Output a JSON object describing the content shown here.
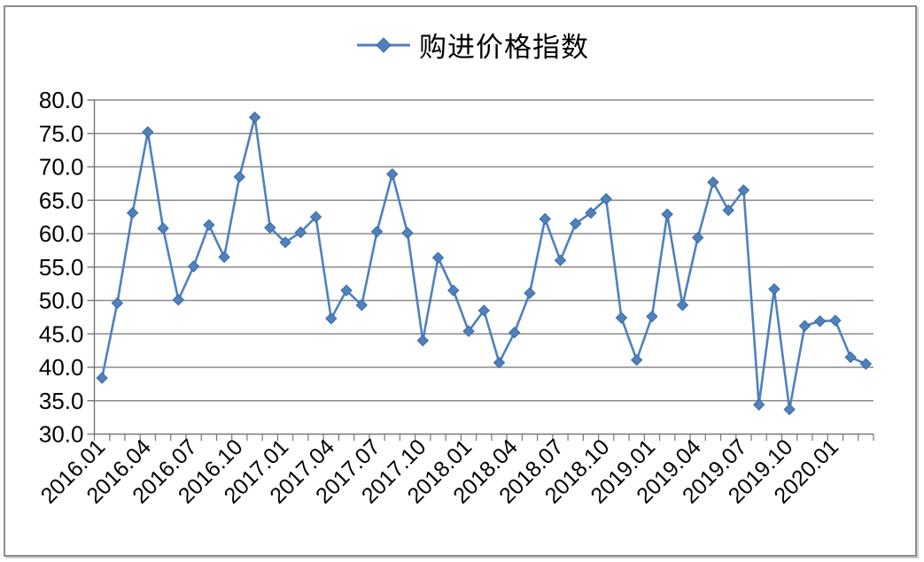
{
  "legend": {
    "label": "购进价格指数"
  },
  "y_axis": {
    "tick_labels": [
      "80.0",
      "75.0",
      "70.0",
      "65.0",
      "60.0",
      "55.0",
      "50.0",
      "45.0",
      "40.0",
      "35.0",
      "30.0"
    ]
  },
  "x_axis": {
    "tick_labels": [
      "2016.01",
      "2016.04",
      "2016.07",
      "2016.10",
      "2017.01",
      "2017.04",
      "2017.07",
      "2017.10",
      "2018.01",
      "2018.04",
      "2018.07",
      "2018.10",
      "2019.01",
      "2019.04",
      "2019.07",
      "2019.10",
      "2020.01"
    ]
  },
  "chart_data": {
    "type": "line",
    "title": "",
    "legend_position": "top-center",
    "grid": true,
    "marker": "diamond",
    "ylim": [
      30.0,
      80.0
    ],
    "y_tick_step": 5.0,
    "x_label_every": 3,
    "categories": [
      "2016.01",
      "2016.02",
      "2016.03",
      "2016.04",
      "2016.05",
      "2016.06",
      "2016.07",
      "2016.08",
      "2016.09",
      "2016.10",
      "2016.11",
      "2016.12",
      "2017.01",
      "2017.02",
      "2017.03",
      "2017.04",
      "2017.05",
      "2017.06",
      "2017.07",
      "2017.08",
      "2017.09",
      "2017.10",
      "2017.11",
      "2017.12",
      "2018.01",
      "2018.02",
      "2018.03",
      "2018.04",
      "2018.05",
      "2018.06",
      "2018.07",
      "2018.08",
      "2018.09",
      "2018.10",
      "2018.11",
      "2018.12",
      "2019.01",
      "2019.02",
      "2019.03",
      "2019.04",
      "2019.05",
      "2019.06",
      "2019.07",
      "2019.08",
      "2019.09",
      "2019.10",
      "2019.11",
      "2019.12",
      "2020.01",
      "2020.02",
      "2020.03"
    ],
    "series": [
      {
        "name": "购进价格指数",
        "values": [
          38.4,
          49.6,
          63.1,
          75.2,
          60.8,
          50.1,
          55.1,
          61.3,
          56.5,
          68.5,
          77.4,
          60.9,
          58.7,
          60.2,
          62.5,
          47.3,
          51.5,
          49.3,
          60.3,
          68.9,
          60.1,
          44.0,
          56.4,
          51.5,
          45.4,
          48.5,
          40.7,
          45.2,
          51.1,
          62.2,
          56.0,
          61.5,
          63.1,
          65.2,
          47.4,
          41.1,
          47.6,
          62.9,
          49.3,
          59.4,
          67.7,
          63.5,
          66.5,
          34.4,
          51.7,
          33.7,
          46.2,
          46.9,
          47.0,
          41.5,
          40.5
        ]
      }
    ]
  },
  "colors": {
    "series_line": "#4f81bd",
    "marker_fill": "#4f81bd",
    "marker_border": "#3b6aa0",
    "gridline": "#8a8a8a",
    "axis": "#767676",
    "text": "#000000",
    "frame_border": "#8c8c8c"
  }
}
